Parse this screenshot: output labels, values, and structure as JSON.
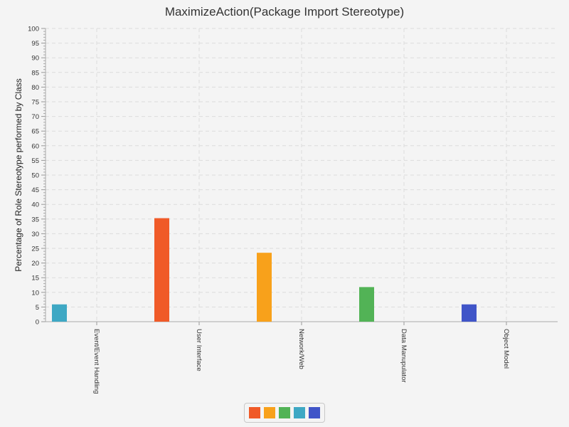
{
  "chart_data": {
    "type": "bar",
    "title": "MaximizeAction(Package Import Stereotype)",
    "xlabel": "",
    "ylabel": "Percentage of Role Stereotype performed by Class",
    "ylim": [
      0,
      100
    ],
    "ytick_step": 5,
    "grid": true,
    "categories": [
      "Event/Event Handling",
      "User Interface",
      "Network/Web",
      "Data Manupulator",
      "Object Model"
    ],
    "series": [
      {
        "color": "#f05a28",
        "values": [
          0,
          35.3,
          0,
          0,
          0
        ]
      },
      {
        "color": "#f8a11b",
        "values": [
          0,
          0,
          23.5,
          0,
          0
        ]
      },
      {
        "color": "#52b356",
        "values": [
          0,
          0,
          0,
          11.8,
          0
        ]
      },
      {
        "color": "#3ea8c4",
        "values": [
          5.9,
          0,
          0,
          0,
          0
        ]
      },
      {
        "color": "#4055c8",
        "values": [
          0,
          0,
          0,
          0,
          5.9
        ]
      }
    ],
    "legend_position": "bottom"
  }
}
